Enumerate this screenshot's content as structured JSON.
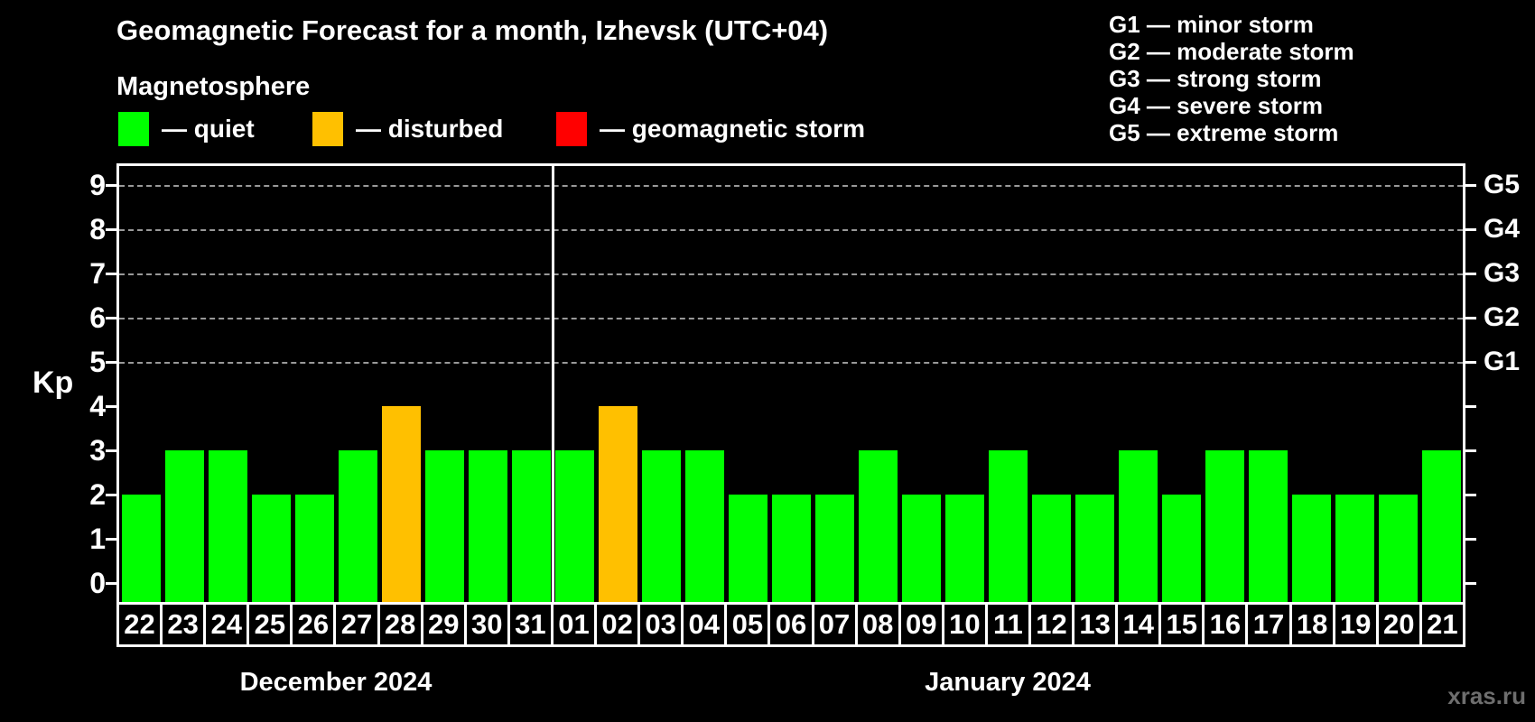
{
  "title": "Geomagnetic Forecast for a month, Izhevsk (UTC+04)",
  "subtitle": "Magnetosphere",
  "watermark": "xras.ru",
  "colors": {
    "quiet": "#00ff00",
    "disturbed": "#ffc000",
    "storm": "#ff0000",
    "background": "#000000",
    "text": "#ffffff",
    "gridline": "#999999",
    "watermark": "#6e6e6e"
  },
  "legend": {
    "items": [
      {
        "name": "quiet",
        "label": "— quiet",
        "color": "#00ff00"
      },
      {
        "name": "disturbed",
        "label": "— disturbed",
        "color": "#ffc000"
      },
      {
        "name": "storm",
        "label": "— geomagnetic storm",
        "color": "#ff0000"
      }
    ]
  },
  "g_scale_legend": {
    "items": [
      "G1 — minor storm",
      "G2 — moderate storm",
      "G3 — strong storm",
      "G4 — severe storm",
      "G5 — extreme storm"
    ]
  },
  "chart_data": {
    "type": "bar",
    "ylabel": "Kp",
    "ylim": [
      0,
      9
    ],
    "yticks": [
      0,
      1,
      2,
      3,
      4,
      5,
      6,
      7,
      8,
      9
    ],
    "gridlines_at_kp": [
      5,
      6,
      7,
      8,
      9
    ],
    "right_axis_labels": [
      {
        "label": "G1",
        "kp": 5
      },
      {
        "label": "G2",
        "kp": 6
      },
      {
        "label": "G3",
        "kp": 7
      },
      {
        "label": "G4",
        "kp": 8
      },
      {
        "label": "G5",
        "kp": 9
      }
    ],
    "months": [
      {
        "label": "December 2024",
        "days": [
          {
            "day": "22",
            "kp": 2,
            "status": "quiet"
          },
          {
            "day": "23",
            "kp": 3,
            "status": "quiet"
          },
          {
            "day": "24",
            "kp": 3,
            "status": "quiet"
          },
          {
            "day": "25",
            "kp": 2,
            "status": "quiet"
          },
          {
            "day": "26",
            "kp": 2,
            "status": "quiet"
          },
          {
            "day": "27",
            "kp": 3,
            "status": "quiet"
          },
          {
            "day": "28",
            "kp": 4,
            "status": "disturbed"
          },
          {
            "day": "29",
            "kp": 3,
            "status": "quiet"
          },
          {
            "day": "30",
            "kp": 3,
            "status": "quiet"
          },
          {
            "day": "31",
            "kp": 3,
            "status": "quiet"
          }
        ]
      },
      {
        "label": "January 2024",
        "days": [
          {
            "day": "01",
            "kp": 3,
            "status": "quiet"
          },
          {
            "day": "02",
            "kp": 4,
            "status": "disturbed"
          },
          {
            "day": "03",
            "kp": 3,
            "status": "quiet"
          },
          {
            "day": "04",
            "kp": 3,
            "status": "quiet"
          },
          {
            "day": "05",
            "kp": 2,
            "status": "quiet"
          },
          {
            "day": "06",
            "kp": 2,
            "status": "quiet"
          },
          {
            "day": "07",
            "kp": 2,
            "status": "quiet"
          },
          {
            "day": "08",
            "kp": 3,
            "status": "quiet"
          },
          {
            "day": "09",
            "kp": 2,
            "status": "quiet"
          },
          {
            "day": "10",
            "kp": 2,
            "status": "quiet"
          },
          {
            "day": "11",
            "kp": 3,
            "status": "quiet"
          },
          {
            "day": "12",
            "kp": 2,
            "status": "quiet"
          },
          {
            "day": "13",
            "kp": 2,
            "status": "quiet"
          },
          {
            "day": "14",
            "kp": 3,
            "status": "quiet"
          },
          {
            "day": "15",
            "kp": 2,
            "status": "quiet"
          },
          {
            "day": "16",
            "kp": 3,
            "status": "quiet"
          },
          {
            "day": "17",
            "kp": 3,
            "status": "quiet"
          },
          {
            "day": "18",
            "kp": 2,
            "status": "quiet"
          },
          {
            "day": "19",
            "kp": 2,
            "status": "quiet"
          },
          {
            "day": "20",
            "kp": 2,
            "status": "quiet"
          },
          {
            "day": "21",
            "kp": 3,
            "status": "quiet"
          }
        ]
      }
    ]
  }
}
